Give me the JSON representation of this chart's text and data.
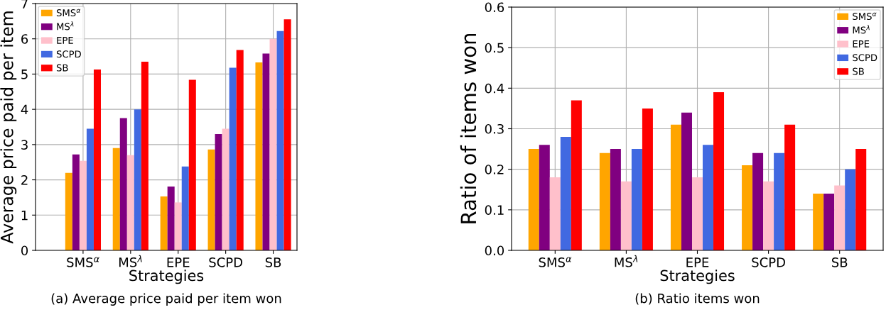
{
  "chart_data": [
    {
      "type": "bar",
      "xlabel": "Strategies",
      "ylabel": "Average price paid per item",
      "categories": [
        "SMS$^{α}$",
        "MS$^{λ}$",
        "EPE",
        "SCPD",
        "SB"
      ],
      "ylim": [
        0,
        7
      ],
      "yticks": [
        0,
        1,
        2,
        3,
        4,
        5,
        6,
        7
      ],
      "grid": true,
      "legend": "top left",
      "annotations": [
        "(a) Average price paid per item won"
      ],
      "series": [
        {
          "name": "SMS$^{α}$",
          "color": "#ffa500",
          "values": [
            2.2,
            2.9,
            1.53,
            2.86,
            5.33
          ]
        },
        {
          "name": "MS$^{λ}$",
          "color": "#800080",
          "values": [
            2.72,
            3.75,
            1.81,
            3.3,
            5.58
          ]
        },
        {
          "name": "EPE",
          "color": "#ffc0cb",
          "values": [
            2.54,
            2.7,
            1.36,
            3.45,
            6.0
          ]
        },
        {
          "name": "SCPD",
          "color": "#4169e1",
          "values": [
            3.45,
            4.0,
            2.38,
            5.18,
            6.22
          ]
        },
        {
          "name": "SB",
          "color": "#ff0000",
          "values": [
            5.13,
            5.35,
            4.84,
            5.68,
            6.55
          ]
        }
      ]
    },
    {
      "type": "bar",
      "xlabel": "Strategies",
      "ylabel": "Ratio of items won",
      "categories": [
        "SMS$^{α}$",
        "MS$^{λ}$",
        "EPE",
        "SCPD",
        "SB"
      ],
      "ylim": [
        0,
        0.6
      ],
      "yticks": [
        {
          "value": 0,
          "label": "0.0"
        },
        0.1,
        0.2,
        0.3,
        0.4,
        0.5,
        0.6
      ],
      "grid": true,
      "legend": "top right",
      "annotations": [
        "(b) Ratio items won"
      ],
      "series": [
        {
          "name": "SMS$^{α}$",
          "color": "#ffa500",
          "values": [
            0.25,
            0.24,
            0.31,
            0.21,
            0.14
          ]
        },
        {
          "name": "MS$^{λ}$",
          "color": "#800080",
          "values": [
            0.26,
            0.25,
            0.34,
            0.24,
            0.14
          ]
        },
        {
          "name": "EPE",
          "color": "#ffc0cb",
          "values": [
            0.18,
            0.17,
            0.18,
            0.17,
            0.16
          ]
        },
        {
          "name": "SCPD",
          "color": "#4169e1",
          "values": [
            0.28,
            0.25,
            0.26,
            0.24,
            0.2
          ]
        },
        {
          "name": "SB",
          "color": "#ff0000",
          "values": [
            0.37,
            0.35,
            0.39,
            0.31,
            0.25
          ]
        }
      ]
    }
  ]
}
